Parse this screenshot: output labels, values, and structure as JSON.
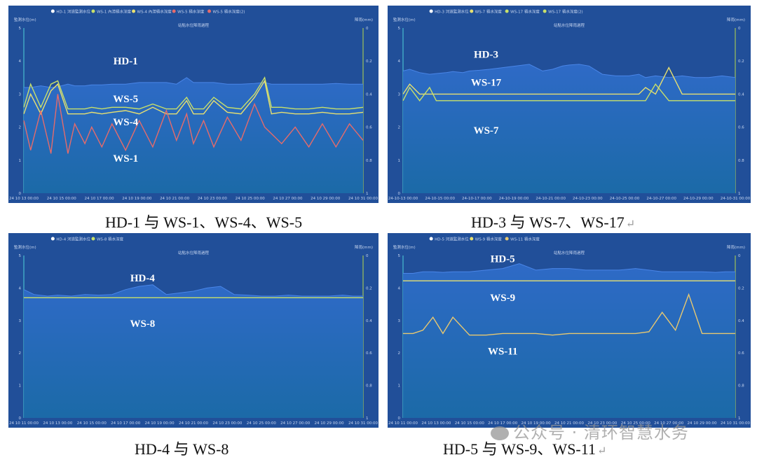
{
  "chart_data": [
    {
      "type": "line",
      "title": "站點水位降雨過程",
      "ylabel_left": "監測水位(m)",
      "ylabel_right": "降雨(mm)",
      "legend": [
        "HD-1 河道監測水位",
        "WS-1 內澇積水深度",
        "WS-4 內澇積水深度",
        "WS-5 積水深度",
        "WS-5 積水深度(2)"
      ],
      "left_ticks": [
        "5",
        "4",
        "3",
        "2",
        "1",
        "0"
      ],
      "right_ticks": [
        "0",
        "0.2",
        "0.4",
        "0.6",
        "0.8",
        "1"
      ],
      "x_ticks": [
        "24 10 13 00:00",
        "24 10 15 00:00",
        "24 10 17 00:00",
        "24 10 19 00:00",
        "24 10 21 00:00",
        "24 10 23 00:00",
        "24 10 25 00:00",
        "24 10 27 00:00",
        "24 10 29 00:00",
        "24 10 31 00:00"
      ],
      "ylim": [
        0,
        5
      ],
      "x": [
        0,
        0.02,
        0.05,
        0.08,
        0.1,
        0.13,
        0.15,
        0.18,
        0.2,
        0.23,
        0.26,
        0.3,
        0.34,
        0.38,
        0.42,
        0.45,
        0.48,
        0.5,
        0.53,
        0.56,
        0.6,
        0.64,
        0.68,
        0.71,
        0.73,
        0.76,
        0.8,
        0.84,
        0.88,
        0.92,
        0.96,
        1
      ],
      "series": [
        {
          "name": "HD-1",
          "label": "HD-1",
          "color": "#3e74d4",
          "fill": true,
          "values": [
            3.2,
            3.2,
            3.25,
            3.2,
            3.22,
            3.3,
            3.25,
            3.25,
            3.28,
            3.28,
            3.3,
            3.3,
            3.35,
            3.35,
            3.35,
            3.3,
            3.5,
            3.35,
            3.35,
            3.35,
            3.3,
            3.3,
            3.32,
            3.35,
            3.3,
            3.3,
            3.3,
            3.3,
            3.3,
            3.32,
            3.3,
            3.3
          ]
        },
        {
          "name": "WS-5",
          "label": "WS-5",
          "color": "#c8e06a",
          "values": [
            2.6,
            3.3,
            2.6,
            3.3,
            3.4,
            2.55,
            2.55,
            2.55,
            2.6,
            2.55,
            2.6,
            2.6,
            2.55,
            2.7,
            2.55,
            2.55,
            2.9,
            2.55,
            2.55,
            2.9,
            2.6,
            2.55,
            3.0,
            3.5,
            2.6,
            2.6,
            2.55,
            2.55,
            2.6,
            2.55,
            2.55,
            2.6
          ]
        },
        {
          "name": "WS-4",
          "label": "WS-4",
          "color": "#e8e070",
          "values": [
            2.4,
            3.0,
            2.4,
            3.1,
            3.3,
            2.4,
            2.4,
            2.4,
            2.45,
            2.4,
            2.45,
            2.5,
            2.4,
            2.6,
            2.4,
            2.4,
            2.8,
            2.4,
            2.4,
            2.8,
            2.45,
            2.4,
            2.9,
            3.4,
            2.4,
            2.45,
            2.4,
            2.4,
            2.45,
            2.4,
            2.4,
            2.45
          ]
        },
        {
          "name": "WS-1",
          "label": "WS-1",
          "color": "#e56b6b",
          "values": [
            2.2,
            1.3,
            2.5,
            1.2,
            3.0,
            1.2,
            2.1,
            1.5,
            2.0,
            1.4,
            2.1,
            1.3,
            2.2,
            1.4,
            2.5,
            1.6,
            2.4,
            1.5,
            2.2,
            1.4,
            2.3,
            1.6,
            2.7,
            2.0,
            1.8,
            1.5,
            2.0,
            1.4,
            2.1,
            1.4,
            2.1,
            1.6
          ]
        }
      ]
    },
    {
      "type": "line",
      "title": "站點水位降雨過程",
      "ylabel_left": "監測水位(m)",
      "ylabel_right": "降雨(mm)",
      "legend": [
        "HD-3 河道監測水位",
        "WS-7 積水深度",
        "WS-17 積水深度",
        "WS-17 積水深度(2)"
      ],
      "left_ticks": [
        "5",
        "4",
        "3",
        "2",
        "1",
        "0"
      ],
      "right_ticks": [
        "0",
        "0.2",
        "0.4",
        "0.6",
        "0.8",
        "1"
      ],
      "x_ticks": [
        "24-10-13 00:00",
        "24-10-15 00:00",
        "24-10-17 00:00",
        "24-10-19 00:00",
        "24-10-21 00:00",
        "24-10-23 00:00",
        "24-10-25 00:00",
        "24-10-27 00:00",
        "24-10-29 00:00",
        "24-10-31 00:00"
      ],
      "ylim": [
        0,
        5
      ],
      "x": [
        0,
        0.02,
        0.05,
        0.08,
        0.1,
        0.13,
        0.15,
        0.18,
        0.2,
        0.23,
        0.26,
        0.3,
        0.34,
        0.38,
        0.42,
        0.45,
        0.48,
        0.5,
        0.53,
        0.56,
        0.6,
        0.64,
        0.68,
        0.71,
        0.73,
        0.76,
        0.8,
        0.84,
        0.88,
        0.92,
        0.96,
        1
      ],
      "series": [
        {
          "name": "HD-3",
          "label": "HD-3",
          "color": "#3e74d4",
          "fill": true,
          "values": [
            3.7,
            3.75,
            3.65,
            3.6,
            3.62,
            3.65,
            3.68,
            3.65,
            3.7,
            3.72,
            3.75,
            3.8,
            3.85,
            3.9,
            3.7,
            3.75,
            3.85,
            3.88,
            3.9,
            3.85,
            3.6,
            3.55,
            3.55,
            3.6,
            3.5,
            3.55,
            3.5,
            3.55,
            3.5,
            3.5,
            3.55,
            3.5
          ]
        },
        {
          "name": "WS-17",
          "label": "WS-17",
          "color": "#e8e070",
          "values": [
            3.0,
            3.3,
            3.0,
            3.0,
            3.0,
            3.0,
            3.0,
            3.0,
            3.0,
            3.0,
            3.0,
            3.0,
            3.0,
            3.0,
            3.0,
            3.0,
            3.0,
            3.0,
            3.0,
            3.0,
            3.0,
            3.0,
            3.0,
            3.0,
            3.2,
            3.0,
            3.8,
            3.0,
            3.0,
            3.0,
            3.0,
            3.0
          ]
        },
        {
          "name": "WS-7",
          "label": "WS-7",
          "color": "#c8e06a",
          "values": [
            2.8,
            3.2,
            2.8,
            3.2,
            2.8,
            2.8,
            2.8,
            2.8,
            2.8,
            2.8,
            2.8,
            2.8,
            2.8,
            2.8,
            2.8,
            2.8,
            2.8,
            2.8,
            2.8,
            2.8,
            2.8,
            2.8,
            2.8,
            2.8,
            2.8,
            3.3,
            2.8,
            2.8,
            2.8,
            2.8,
            2.8,
            2.8
          ]
        }
      ]
    },
    {
      "type": "line",
      "title": "站點水位降雨過程",
      "ylabel_left": "監測水位(m)",
      "ylabel_right": "降雨(mm)",
      "legend": [
        "HD-4 河道監測水位",
        "WS-8 積水深度"
      ],
      "left_ticks": [
        "5",
        "4",
        "3",
        "2",
        "1",
        "0"
      ],
      "right_ticks": [
        "0",
        "0.2",
        "0.4",
        "0.6",
        "0.8",
        "1"
      ],
      "x_ticks": [
        "24 10 11 00:00",
        "24 10 13 00:00",
        "24 10 15 00:00",
        "24 10 17 00:00",
        "24 10 19 00:00",
        "24 10 21 00:00",
        "24 10 23 00:00",
        "24 10 25 00:00",
        "24 10 27 00:00",
        "24 10 29 00:00",
        "24 10 31 00:00"
      ],
      "ylim": [
        0,
        5
      ],
      "x": [
        0,
        0.03,
        0.07,
        0.1,
        0.14,
        0.18,
        0.22,
        0.26,
        0.3,
        0.34,
        0.38,
        0.42,
        0.46,
        0.5,
        0.54,
        0.58,
        0.62,
        0.66,
        0.7,
        0.74,
        0.78,
        0.82,
        0.86,
        0.9,
        0.94,
        0.97,
        1
      ],
      "series": [
        {
          "name": "HD-4",
          "label": "HD-4",
          "color": "#3e74d4",
          "fill": true,
          "values": [
            3.95,
            3.8,
            3.75,
            3.78,
            3.75,
            3.8,
            3.78,
            3.8,
            3.95,
            4.05,
            4.1,
            3.8,
            3.85,
            3.9,
            4.0,
            4.05,
            3.8,
            3.78,
            3.75,
            3.75,
            3.78,
            3.75,
            3.75,
            3.75,
            3.78,
            3.75,
            3.75
          ]
        },
        {
          "name": "WS-8",
          "label": "WS-8",
          "color": "#c8e06a",
          "values": [
            3.7,
            3.7,
            3.7,
            3.7,
            3.7,
            3.7,
            3.7,
            3.7,
            3.7,
            3.7,
            3.7,
            3.7,
            3.7,
            3.7,
            3.7,
            3.7,
            3.7,
            3.7,
            3.7,
            3.7,
            3.7,
            3.7,
            3.7,
            3.7,
            3.7,
            3.7,
            3.7
          ]
        }
      ]
    },
    {
      "type": "line",
      "title": "站點水位降雨過程",
      "ylabel_left": "監測水位(m)",
      "ylabel_right": "降雨(mm)",
      "legend": [
        "HD-5 河道監測水位",
        "WS-9 積水深度",
        "WS-11 積水深度"
      ],
      "left_ticks": [
        "5",
        "4",
        "3",
        "2",
        "1",
        "0"
      ],
      "right_ticks": [
        "0",
        "0.2",
        "0.4",
        "0.6",
        "0.8",
        "1"
      ],
      "x_ticks": [
        "24 10 11 00:00",
        "24 10 13 00:00",
        "24 10 15 00:00",
        "24 10 17 00:00",
        "24 10 19 00:00",
        "24 10 21 00:00",
        "24 10 23 00:00",
        "24 10 25 00:00",
        "24 10 27 00:00",
        "24 10 29 00:00",
        "24 10 31 00:00"
      ],
      "ylim": [
        0,
        5
      ],
      "x": [
        0,
        0.03,
        0.06,
        0.09,
        0.12,
        0.15,
        0.2,
        0.25,
        0.3,
        0.35,
        0.4,
        0.45,
        0.5,
        0.55,
        0.6,
        0.65,
        0.7,
        0.74,
        0.78,
        0.82,
        0.86,
        0.9,
        0.94,
        0.97,
        1
      ],
      "series": [
        {
          "name": "HD-5",
          "label": "HD-5",
          "color": "#3e74d4",
          "fill": true,
          "values": [
            4.45,
            4.45,
            4.5,
            4.5,
            4.48,
            4.5,
            4.5,
            4.55,
            4.6,
            4.75,
            4.55,
            4.6,
            4.6,
            4.55,
            4.55,
            4.55,
            4.6,
            4.55,
            4.5,
            4.5,
            4.5,
            4.5,
            4.48,
            4.5,
            4.5
          ]
        },
        {
          "name": "WS-9",
          "label": "WS-9",
          "color": "#e8e070",
          "values": [
            4.22,
            4.22,
            4.22,
            4.22,
            4.22,
            4.22,
            4.22,
            4.22,
            4.22,
            4.22,
            4.22,
            4.22,
            4.22,
            4.22,
            4.22,
            4.22,
            4.22,
            4.22,
            4.22,
            4.22,
            4.22,
            4.22,
            4.22,
            4.22,
            4.22
          ]
        },
        {
          "name": "WS-11",
          "label": "WS-11",
          "color": "#e8c870",
          "values": [
            2.6,
            2.6,
            2.7,
            3.1,
            2.6,
            3.1,
            2.55,
            2.55,
            2.6,
            2.6,
            2.6,
            2.55,
            2.6,
            2.6,
            2.6,
            2.6,
            2.6,
            2.65,
            3.25,
            2.7,
            3.8,
            2.6,
            2.6,
            2.6,
            2.6
          ]
        }
      ]
    }
  ],
  "captions": [
    {
      "text": "HD-1 与 WS-1、WS-4、WS-5",
      "mark": ""
    },
    {
      "text": "HD-3 与 WS-7、WS-17",
      "mark": "↵"
    },
    {
      "text": "HD-4 与 WS-8",
      "mark": ""
    },
    {
      "text": "HD-5 与 WS-9、WS-11",
      "mark": "↵"
    }
  ],
  "watermark": "公众号 · 清环智慧水务"
}
